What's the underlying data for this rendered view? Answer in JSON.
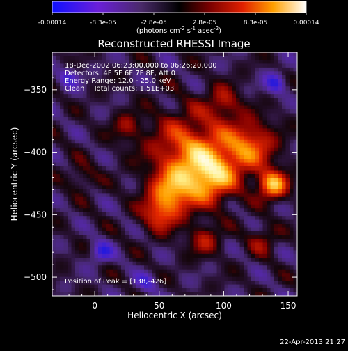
{
  "chart_data": {
    "type": "heatmap",
    "title": "Reconstructed RHESSI Image",
    "xlabel": "Heliocentric X (arcsec)",
    "ylabel": "Heliocentric Y (arcsec)",
    "xlim": [
      -33,
      157
    ],
    "ylim": [
      -515,
      -320
    ],
    "x_ticks": [
      0,
      50,
      100,
      150
    ],
    "y_ticks": [
      -350,
      -400,
      -450,
      -500
    ],
    "colorbar": {
      "min": -0.00014,
      "max": 0.00014,
      "tick_labels": [
        "-0.00014",
        "-8.3e-05",
        "-2.8e-05",
        "2.8e-05",
        "8.3e-05",
        "0.00014"
      ],
      "label_main": "(photons cm",
      "label_sup1": "-2",
      "label_mid1": " s",
      "label_sup2": "-1",
      "label_mid2": " asec",
      "label_sup3": "-2",
      "label_end": ")"
    },
    "annotations": [
      "18-Dec-2002 06:23:00.000 to 06:26:20.000",
      "Detectors: 4F 5F 6F 7F 8F, Att 0",
      "Energy Range: 12.0 - 25.0 keV",
      "Clean    Total counts: 1.51E+03"
    ],
    "peak_label": "Position of Peak = [138,-426]",
    "peak": [
      138,
      -426
    ],
    "sources": [
      {
        "x": 75,
        "y": -400,
        "s": 22,
        "a": 0.55
      },
      {
        "x": 90,
        "y": -420,
        "s": 14,
        "a": 0.55
      },
      {
        "x": 60,
        "y": -432,
        "s": 12,
        "a": 0.5
      },
      {
        "x": 120,
        "y": -395,
        "s": 14,
        "a": 0.5
      },
      {
        "x": 138,
        "y": -426,
        "s": 8,
        "a": 0.7
      },
      {
        "x": 50,
        "y": -450,
        "s": 10,
        "a": 0.4
      },
      {
        "x": 25,
        "y": -380,
        "s": 8,
        "a": 0.25
      },
      {
        "x": 100,
        "y": -360,
        "s": 9,
        "a": 0.3
      },
      {
        "x": -10,
        "y": -420,
        "s": 8,
        "a": 0.2
      },
      {
        "x": 130,
        "y": -470,
        "s": 8,
        "a": 0.25
      },
      {
        "x": 85,
        "y": -470,
        "s": 9,
        "a": 0.3
      },
      {
        "x": 5,
        "y": -480,
        "s": 6,
        "a": -0.35
      },
      {
        "x": 140,
        "y": -345,
        "s": 6,
        "a": -0.4
      },
      {
        "x": -20,
        "y": -340,
        "s": 6,
        "a": -0.3
      },
      {
        "x": 40,
        "y": -505,
        "s": 6,
        "a": -0.25
      }
    ]
  },
  "footer": {
    "timestamp": "22-Apr-2013 21:27"
  }
}
